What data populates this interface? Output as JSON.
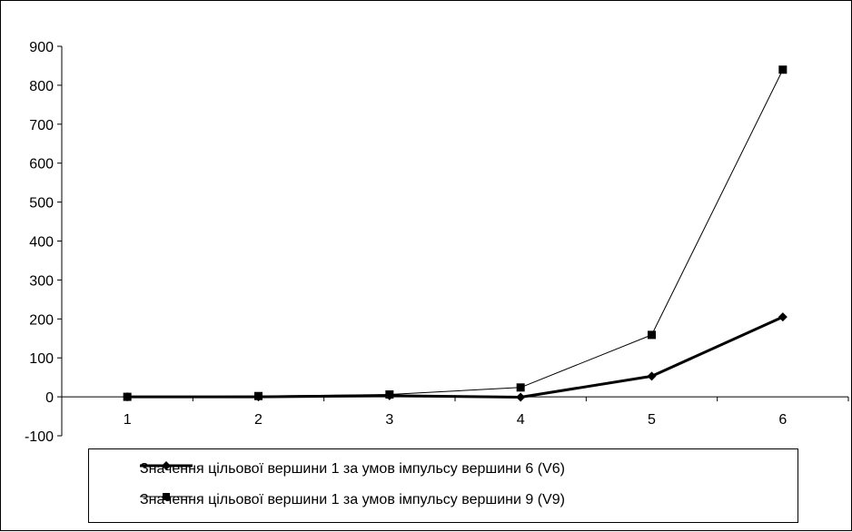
{
  "chart_data": {
    "type": "line",
    "title": "",
    "xlabel": "",
    "ylabel": "",
    "categories": [
      "1",
      "2",
      "3",
      "4",
      "5",
      "6"
    ],
    "ylim": [
      -100,
      900
    ],
    "yticks": [
      -100,
      0,
      100,
      200,
      300,
      400,
      500,
      600,
      700,
      800,
      900
    ],
    "grid": false,
    "legend_position": "bottom",
    "series": [
      {
        "name": "Значення цільової вершини 1 за умов імпульсу вершини 6 (V6)",
        "values": [
          0,
          0,
          3,
          -1,
          53,
          205
        ],
        "marker": "diamond",
        "line": "thick",
        "color": "#000000"
      },
      {
        "name": "Значення цільової вершини 1 за умов імпульсу вершини 9 (V9)",
        "values": [
          0,
          2,
          6,
          24,
          159,
          840
        ],
        "marker": "square",
        "line": "thin",
        "color": "#000000"
      }
    ]
  }
}
